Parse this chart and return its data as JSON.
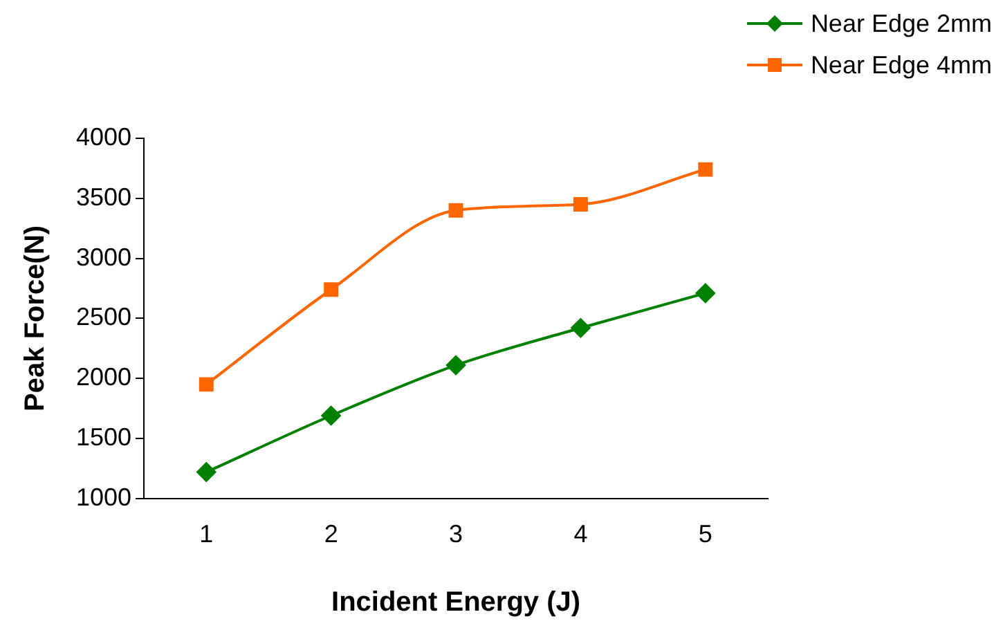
{
  "chart_data": {
    "type": "line",
    "xlabel": "Incident Energy (J)",
    "ylabel": "Peak Force(N)",
    "categories": [
      "1",
      "2",
      "3",
      "4",
      "5"
    ],
    "ylim": [
      1000,
      4000
    ],
    "yticks": [
      1000,
      1500,
      2000,
      2500,
      3000,
      3500,
      4000
    ],
    "grid": false,
    "legend": "top right",
    "series": [
      {
        "name": "Near Edge 2mm",
        "color": "#008000",
        "marker": "diamond",
        "values": [
          1220,
          1690,
          2110,
          2420,
          2710
        ]
      },
      {
        "name": "Near Edge 4mm",
        "color": "#ff6600",
        "marker": "square",
        "values": [
          1950,
          2740,
          3400,
          3450,
          3740
        ]
      }
    ]
  }
}
